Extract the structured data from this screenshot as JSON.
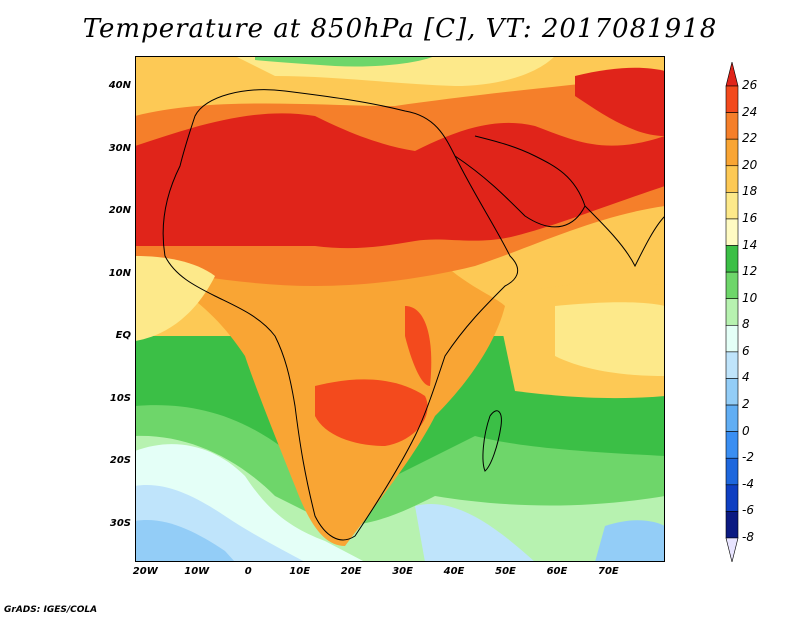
{
  "title": "Temperature at 850hPa [C], VT: 2017081918",
  "footer": "GrADS: IGES/COLA",
  "map": {
    "lon_range": [
      -22,
      81
    ],
    "lat_range": [
      -36,
      45
    ],
    "lat_ticks": [
      {
        "value": 40,
        "label": "40N"
      },
      {
        "value": 30,
        "label": "30N"
      },
      {
        "value": 20,
        "label": "20N"
      },
      {
        "value": 10,
        "label": "10N"
      },
      {
        "value": 0,
        "label": "EQ"
      },
      {
        "value": -10,
        "label": "10S"
      },
      {
        "value": -20,
        "label": "20S"
      },
      {
        "value": -30,
        "label": "30S"
      }
    ],
    "lon_ticks": [
      {
        "value": -20,
        "label": "20W"
      },
      {
        "value": -10,
        "label": "10W"
      },
      {
        "value": 0,
        "label": "0"
      },
      {
        "value": 10,
        "label": "10E"
      },
      {
        "value": 20,
        "label": "20E"
      },
      {
        "value": 30,
        "label": "30E"
      },
      {
        "value": 40,
        "label": "40E"
      },
      {
        "value": 50,
        "label": "50E"
      },
      {
        "value": 60,
        "label": "60E"
      },
      {
        "value": 70,
        "label": "70E"
      }
    ]
  },
  "colorbar": {
    "levels": [
      "26",
      "24",
      "22",
      "20",
      "18",
      "16",
      "14",
      "12",
      "10",
      "8",
      "6",
      "4",
      "2",
      "0",
      "-2",
      "-4",
      "-6",
      "-8"
    ],
    "colors": [
      "#e0241a",
      "#f34a1d",
      "#f57f2a",
      "#f9a534",
      "#fdc955",
      "#fde98a",
      "#fffbc3",
      "#3bbf46",
      "#6ed66a",
      "#b7f2b0",
      "#e4fff7",
      "#bfe4fb",
      "#93cdf7",
      "#61aef4",
      "#3a8ef2",
      "#1e67dd",
      "#0f3fc2",
      "#0b1a82",
      "#e8e4ff"
    ]
  }
}
